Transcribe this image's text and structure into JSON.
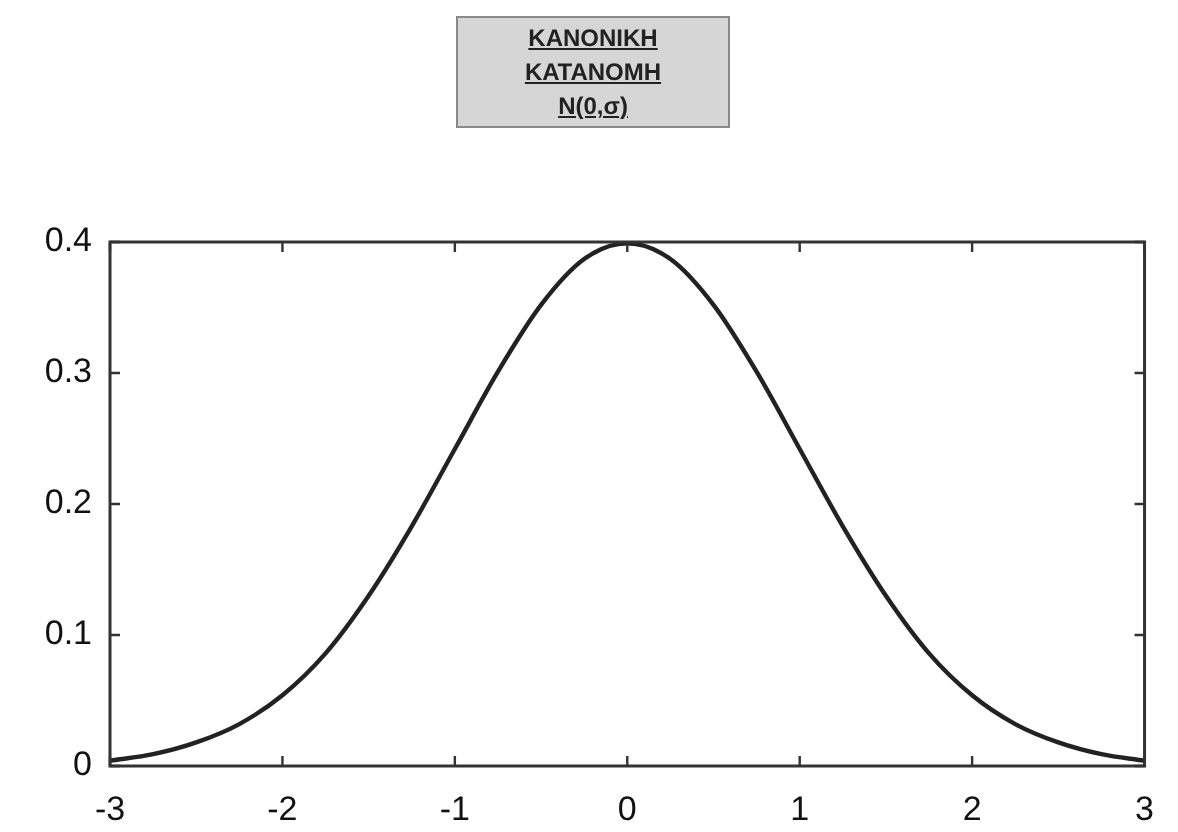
{
  "chart_data": {
    "type": "line",
    "title": "ΚΑΝΟΝΙΚΗ ΚΑΤΑΝΟΜΗ",
    "subtitle": "N(0,σ)",
    "x": [
      -3,
      -2.75,
      -2.5,
      -2.25,
      -2,
      -1.75,
      -1.5,
      -1.25,
      -1,
      -0.75,
      -0.5,
      -0.25,
      0,
      0.25,
      0.5,
      0.75,
      1,
      1.25,
      1.5,
      1.75,
      2,
      2.25,
      2.5,
      2.75,
      3
    ],
    "values": [
      0.004,
      0.009,
      0.018,
      0.032,
      0.054,
      0.086,
      0.13,
      0.183,
      0.242,
      0.301,
      0.352,
      0.387,
      0.399,
      0.387,
      0.352,
      0.301,
      0.242,
      0.183,
      0.13,
      0.086,
      0.054,
      0.032,
      0.018,
      0.009,
      0.004
    ],
    "color": "#222222",
    "xlim": [
      -3,
      3
    ],
    "ylim": [
      0,
      0.4
    ],
    "xticks": [
      -3,
      -2,
      -1,
      0,
      1,
      2,
      3
    ],
    "yticks": [
      0,
      0.1,
      0.2,
      0.3,
      0.4
    ]
  }
}
